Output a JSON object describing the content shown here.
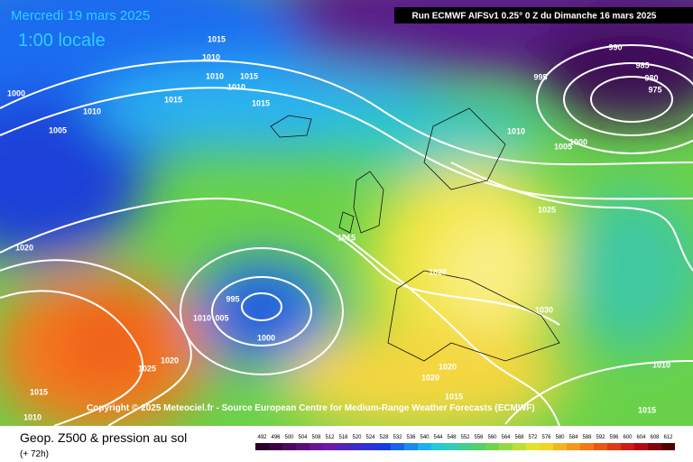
{
  "header": {
    "date": "Mercredi 19 mars 2025",
    "time": "1:00 locale",
    "run": "Run ECMWF AIFSv1 0.25° 0 Z du Dimanche 16 mars 2025"
  },
  "copyright": "Copyright © 2025 Meteociel.fr - Source European Centre for Medium-Range Weather Forecasts (ECMWF)",
  "footer": {
    "title": "Geop. Z500 & pression au sol",
    "lead": "(+ 72h)"
  },
  "scale": [
    492,
    496,
    500,
    504,
    508,
    512,
    516,
    520,
    524,
    528,
    532,
    536,
    540,
    544,
    548,
    552,
    556,
    560,
    564,
    568,
    572,
    576,
    580,
    584,
    588,
    592,
    596,
    600,
    604,
    608,
    612
  ],
  "isobars": [
    "1015",
    "1010",
    "1010",
    "1015",
    "1010",
    "1015",
    "1015",
    "1000",
    "1010",
    "1005",
    "990",
    "995",
    "985",
    "980",
    "975",
    "1010",
    "1005",
    "1000",
    "1025",
    "1015",
    "1020",
    "1020",
    "995",
    "1010",
    "005",
    "1000",
    "1030",
    "1020",
    "1025",
    "1020",
    "1020",
    "1010",
    "1015",
    "1015",
    "1010",
    "1015"
  ]
}
